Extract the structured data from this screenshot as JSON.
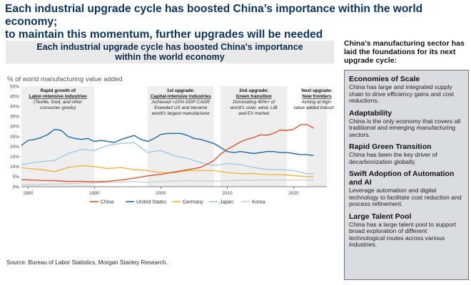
{
  "page": {
    "title_line1": "Each industrial upgrade cycle has boosted China’s importance within the world economy;",
    "title_line2": "to maintain this momentum, further upgrades will be needed",
    "source": "Source: Bureau of Labor Statistics, Morgan Stanley Research."
  },
  "chart_data": {
    "type": "line",
    "title_line1": "Each industrial upgrade cycle has boosted China's importance",
    "title_line2": "within the world economy",
    "ylabel": "% of world manufacturing value added",
    "xlim": [
      1979,
      2025
    ],
    "ylim": [
      0,
      50
    ],
    "x_ticks": [
      1980,
      1990,
      2000,
      2010,
      2020
    ],
    "y_ticks": [
      "0%",
      "5%",
      "10%",
      "15%",
      "20%",
      "25%",
      "30%",
      "35%",
      "40%",
      "45%",
      "50%"
    ],
    "x_tick_labels": [
      "1980",
      "1990",
      "2000",
      "2010",
      "2020"
    ],
    "shaded_periods": [
      {
        "start": 1979,
        "end": 1990,
        "title_line1": "Rapid growth of",
        "title_line2": "Labor-intensive industries",
        "note_lines": [
          "(Textile, food, and other",
          "consumer goods)"
        ]
      },
      {
        "start": 1998,
        "end": 2008,
        "title_line1": "1st upgrade:",
        "title_line2": "Capital-intensive industries",
        "note_lines": [
          "Achieved >10% GDP CAGR",
          "Exeeded US and became",
          "world's largest manufacturer"
        ]
      },
      {
        "start": 2009,
        "end": 2019,
        "title_line1": "2nd upgrade:",
        "title_line2": "Green transition",
        "note_lines": [
          "Dominating 40%+ of",
          "world's solar, wind, LIB",
          "and EV market"
        ]
      },
      {
        "start": 2022,
        "end": 2025,
        "title_line1": "Next upgrade:",
        "title_line2": "New frontiers",
        "note_lines": [
          "Aiming at high-",
          "value added industries"
        ]
      }
    ],
    "series": [
      {
        "name": "China",
        "color": "#d9552b",
        "x": [
          1979,
          1980,
          1982,
          1984,
          1986,
          1988,
          1990,
          1992,
          1994,
          1996,
          1998,
          2000,
          2002,
          2004,
          2006,
          2007,
          2008,
          2009,
          2010,
          2011,
          2012,
          2013,
          2014,
          2015,
          2016,
          2017,
          2018,
          2019,
          2020,
          2021,
          2022,
          2023
        ],
        "y": [
          3.5,
          3.4,
          3.1,
          3.0,
          2.6,
          2.7,
          2.4,
          2.7,
          3.3,
          4.3,
          5.4,
          6.1,
          7.3,
          8.4,
          9.6,
          11.2,
          13.0,
          16.2,
          18.5,
          20.4,
          22.3,
          23.6,
          24.5,
          25.8,
          25.6,
          26.6,
          28.2,
          28.0,
          28.5,
          30.8,
          31.0,
          29.2
        ]
      },
      {
        "name": "United States",
        "color": "#1b6aa5",
        "x": [
          1979,
          1980,
          1981,
          1982,
          1983,
          1984,
          1985,
          1986,
          1987,
          1988,
          1989,
          1990,
          1991,
          1992,
          1993,
          1994,
          1995,
          1996,
          1997,
          1998,
          1999,
          2000,
          2001,
          2002,
          2003,
          2004,
          2005,
          2006,
          2007,
          2008,
          2009,
          2010,
          2011,
          2012,
          2013,
          2014,
          2015,
          2016,
          2017,
          2018,
          2019,
          2020,
          2021,
          2022,
          2023
        ],
        "y": [
          20.5,
          23.0,
          23.5,
          24.5,
          26.0,
          28.5,
          28.0,
          25.0,
          24.0,
          23.5,
          24.0,
          22.5,
          23.0,
          22.5,
          22.0,
          23.5,
          24.5,
          25.5,
          23.5,
          22.5,
          24.0,
          26.0,
          26.5,
          26.5,
          26.5,
          25.5,
          24.0,
          23.5,
          22.5,
          21.5,
          19.5,
          17.5,
          17.0,
          17.5,
          17.0,
          16.5,
          17.0,
          17.5,
          17.5,
          17.0,
          17.0,
          16.5,
          16.0,
          16.0,
          15.5
        ]
      },
      {
        "name": "Germany",
        "color": "#f0b53d",
        "x": [
          1979,
          1980,
          1982,
          1984,
          1986,
          1988,
          1990,
          1992,
          1994,
          1996,
          1998,
          2000,
          2002,
          2004,
          2006,
          2008,
          2010,
          2012,
          2014,
          2016,
          2018,
          2020,
          2022,
          2023
        ],
        "y": [
          9.5,
          9.0,
          8.5,
          7.5,
          9.5,
          10.5,
          10.0,
          9.0,
          9.5,
          8.5,
          8.0,
          7.0,
          7.0,
          8.0,
          8.0,
          8.0,
          7.0,
          6.5,
          6.5,
          6.0,
          6.0,
          5.5,
          5.0,
          5.0
        ]
      },
      {
        "name": "Japan",
        "color": "#9fcbe3",
        "x": [
          1979,
          1980,
          1982,
          1984,
          1986,
          1988,
          1990,
          1992,
          1994,
          1996,
          1998,
          2000,
          2002,
          2004,
          2006,
          2008,
          2010,
          2012,
          2014,
          2016,
          2018,
          2020,
          2022,
          2023
        ],
        "y": [
          11.0,
          11.5,
          12.5,
          13.0,
          16.5,
          18.5,
          18.0,
          20.5,
          21.5,
          22.0,
          17.0,
          18.0,
          15.5,
          14.0,
          12.0,
          10.5,
          11.5,
          11.0,
          9.5,
          8.5,
          8.5,
          8.0,
          6.5,
          6.5
        ]
      },
      {
        "name": "Korea",
        "color": "#cfcfcf",
        "x": [
          1979,
          1980,
          1984,
          1988,
          1990,
          1994,
          1996,
          1998,
          2000,
          2004,
          2008,
          2012,
          2016,
          2020,
          2023
        ],
        "y": [
          1.0,
          1.0,
          1.3,
          1.8,
          2.0,
          2.3,
          2.5,
          2.2,
          2.6,
          3.0,
          2.7,
          3.2,
          3.3,
          3.3,
          3.3
        ]
      }
    ]
  },
  "sidebar": {
    "heading": "China’s manufacturing sector has laid the foundations for its next upgrade cycle:",
    "cards": [
      {
        "title": "Economies of Scale",
        "text": "China has large and integrated supply chain to drive efficiency gains and cost reductions."
      },
      {
        "title": "Adaptability",
        "text": "China is the only economy that covers all traditional and emerging manufacturing sectors."
      },
      {
        "title": "Rapid Green Transition",
        "text": "China has been the key driver of decarbonization globally."
      },
      {
        "title": "Swift Adoption of Automation and AI",
        "text": "Leverage automation and digital technology to facilitate cost reduction and process refinement."
      },
      {
        "title": "Large Talent Pool",
        "text": "China has a large talent pool to support broad exploration of different technological routes across various industries."
      }
    ]
  }
}
